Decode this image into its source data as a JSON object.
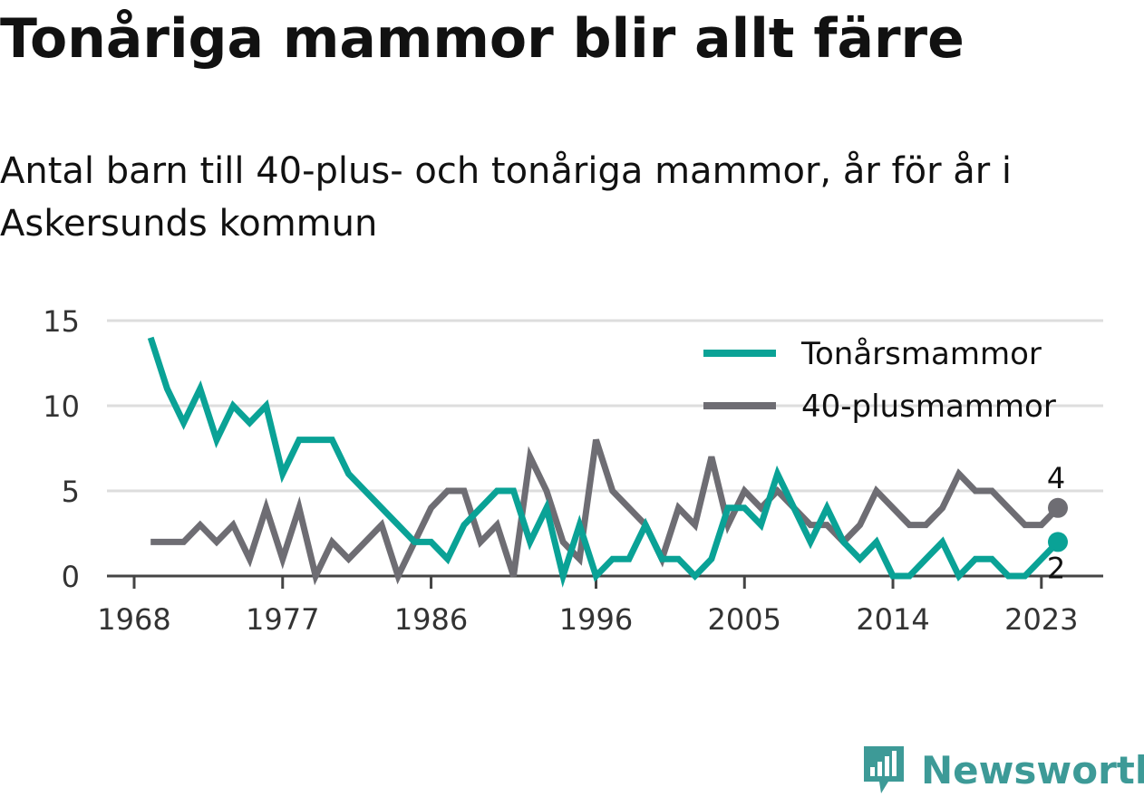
{
  "title": "Tonåriga mammor blir allt färre",
  "subtitle": "Antal barn till 40-plus- och tonåriga mammor, år för år i Askersunds kommun",
  "brand": "Newsworthy",
  "colors": {
    "teen": "#0aa296",
    "plus40": "#6e6d73",
    "grid": "#dddddd",
    "axis": "#444444"
  },
  "chart_data": {
    "type": "line",
    "x": [
      1969,
      1970,
      1971,
      1972,
      1973,
      1974,
      1975,
      1976,
      1977,
      1978,
      1979,
      1980,
      1981,
      1982,
      1983,
      1984,
      1985,
      1986,
      1987,
      1988,
      1989,
      1990,
      1991,
      1992,
      1993,
      1994,
      1995,
      1996,
      1997,
      1998,
      1999,
      2000,
      2001,
      2002,
      2003,
      2004,
      2005,
      2006,
      2007,
      2008,
      2009,
      2010,
      2011,
      2012,
      2013,
      2014,
      2015,
      2016,
      2017,
      2018,
      2019,
      2020,
      2021,
      2022,
      2023,
      2024
    ],
    "series": [
      {
        "name": "Tonårsmammor",
        "color": "#0aa296",
        "values": [
          14,
          11,
          9,
          11,
          8,
          10,
          9,
          10,
          6,
          8,
          8,
          8,
          6,
          5,
          4,
          3,
          2,
          2,
          1,
          3,
          4,
          5,
          5,
          2,
          4,
          0,
          3,
          0,
          1,
          1,
          3,
          1,
          1,
          0,
          1,
          4,
          4,
          3,
          6,
          4,
          2,
          4,
          2,
          1,
          2,
          0,
          0,
          1,
          2,
          0,
          1,
          1,
          0,
          0,
          1,
          2
        ]
      },
      {
        "name": "40-plusmammor",
        "color": "#6e6d73",
        "values": [
          2,
          2,
          2,
          3,
          2,
          3,
          1,
          4,
          1,
          4,
          0,
          2,
          1,
          2,
          3,
          0,
          2,
          4,
          5,
          5,
          2,
          3,
          0,
          7,
          5,
          2,
          1,
          8,
          5,
          4,
          3,
          1,
          4,
          3,
          7,
          3,
          5,
          4,
          5,
          4,
          3,
          3,
          2,
          3,
          5,
          4,
          3,
          3,
          4,
          6,
          5,
          5,
          4,
          3,
          3,
          4
        ]
      }
    ],
    "yticks": [
      "0",
      "5",
      "10",
      "15"
    ],
    "xticks": [
      "1968",
      "1977",
      "1986",
      "1996",
      "2005",
      "2014",
      "2023"
    ],
    "ylim": [
      0,
      15
    ],
    "end_labels": {
      "Tonårsmammor": "2",
      "40-plusmammor": "4"
    },
    "legend_position": "top-right",
    "grid": true
  }
}
